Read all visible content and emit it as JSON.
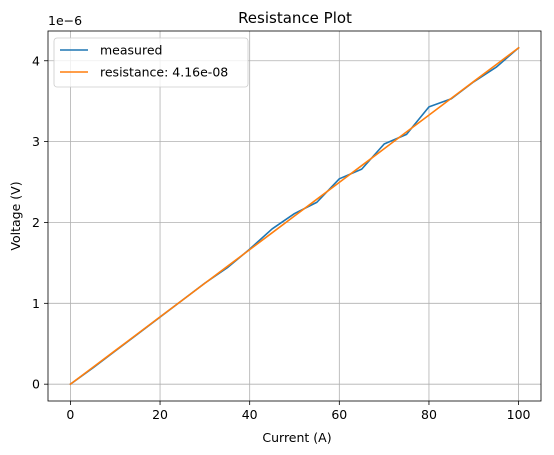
{
  "chart_data": {
    "type": "line",
    "title": "Resistance Plot",
    "xlabel": "Current (A)",
    "ylabel": "Voltage (V)",
    "y_offset_label": "1e−6",
    "xlim": [
      -5,
      105
    ],
    "ylim": [
      -0.208,
      4.368
    ],
    "x_ticks": [
      0,
      20,
      40,
      60,
      80,
      100
    ],
    "x_tick_labels": [
      "0",
      "20",
      "40",
      "60",
      "80",
      "100"
    ],
    "y_ticks": [
      0,
      1,
      2,
      3,
      4
    ],
    "y_tick_labels": [
      "0",
      "1",
      "2",
      "3",
      "4"
    ],
    "y_unit_multiplier": 1e-06,
    "grid": true,
    "legend_position": "top-left",
    "series": [
      {
        "name": "measured",
        "color": "#1f77b4",
        "x": [
          0,
          5,
          10,
          15,
          20,
          25,
          30,
          35,
          40,
          45,
          50,
          55,
          60,
          65,
          70,
          75,
          80,
          85,
          90,
          95,
          100
        ],
        "y": [
          0,
          0.2,
          0.41,
          0.62,
          0.83,
          1.04,
          1.25,
          1.44,
          1.67,
          1.92,
          2.11,
          2.25,
          2.54,
          2.66,
          2.97,
          3.09,
          3.43,
          3.53,
          3.74,
          3.92,
          4.16
        ]
      },
      {
        "name": "resistance: 4.16e-08",
        "color": "#ff7f0e",
        "x": [
          0,
          5,
          10,
          15,
          20,
          25,
          30,
          35,
          40,
          45,
          50,
          55,
          60,
          65,
          70,
          75,
          80,
          85,
          90,
          95,
          100
        ],
        "y": [
          0,
          0.208,
          0.416,
          0.624,
          0.832,
          1.04,
          1.248,
          1.456,
          1.664,
          1.872,
          2.08,
          2.288,
          2.496,
          2.704,
          2.912,
          3.12,
          3.328,
          3.536,
          3.744,
          3.952,
          4.16
        ]
      }
    ]
  }
}
